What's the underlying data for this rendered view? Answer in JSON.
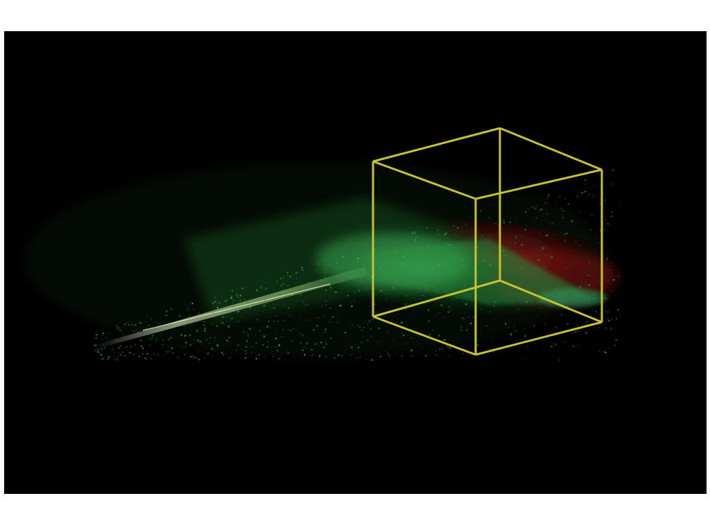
{
  "scene": {
    "background_color": "#000000",
    "page_background": "#ffffff",
    "cube_wireframe_color": "#c8c232",
    "point_cloud_colors": {
      "green": "#2fa040",
      "green_bright": "#4ec060",
      "red": "#b01818",
      "streak": "#e8f0c0"
    },
    "description_icons": [
      "wireframe-cube-icon",
      "point-cloud-icon"
    ]
  }
}
